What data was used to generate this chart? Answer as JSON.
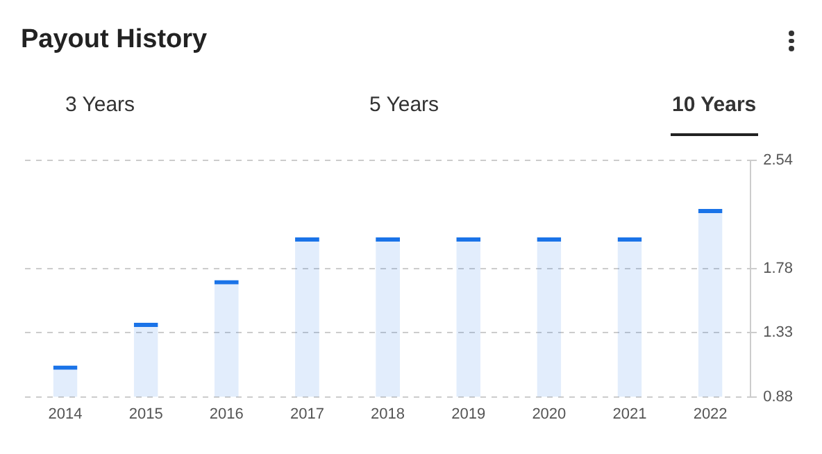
{
  "chart_data": {
    "type": "bar",
    "title": "Payout History",
    "annotations": [
      "3 Years",
      "5 Years",
      "10 Years"
    ],
    "categories": [
      "2014",
      "2015",
      "2016",
      "2017",
      "2018",
      "2019",
      "2020",
      "2021",
      "2022"
    ],
    "values": [
      1.1,
      1.4,
      1.7,
      2.0,
      2.0,
      2.0,
      2.0,
      2.0,
      2.2
    ],
    "color": "#1a73e8",
    "ylim": [
      0.88,
      2.54
    ],
    "yticks": [
      0.88,
      1.33,
      1.78,
      2.54
    ],
    "grid": "y"
  }
}
